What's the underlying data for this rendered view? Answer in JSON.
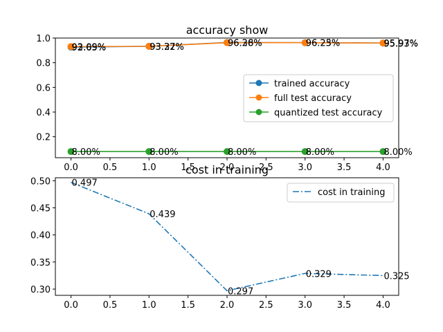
{
  "chart_data": [
    {
      "type": "line",
      "title": "accuracy show",
      "xlabel": "",
      "ylabel": "",
      "x": [
        0,
        1,
        2,
        3,
        4
      ],
      "xlim": [
        -0.2,
        4.2
      ],
      "ylim": [
        0.03,
        1.0
      ],
      "xticks": [
        0.0,
        0.5,
        1.0,
        1.5,
        2.0,
        2.5,
        3.0,
        3.5,
        4.0
      ],
      "xtick_labels": [
        "0.0",
        "0.5",
        "1.0",
        "1.5",
        "2.0",
        "2.5",
        "3.0",
        "3.5",
        "4.0"
      ],
      "yticks": [
        0.2,
        0.4,
        0.6,
        0.8,
        1.0
      ],
      "ytick_labels": [
        "0.2",
        "0.4",
        "0.6",
        "0.8",
        "1.0"
      ],
      "grid": false,
      "legend": "center-right",
      "series": [
        {
          "name": "trained accuracy",
          "color": "#1f77b4",
          "marker": "circle",
          "linestyle": "solid",
          "values": [
            0.9265,
            0.9332,
            0.9638,
            0.9625,
            0.9597
          ],
          "labels": [
            "92.65%",
            "93.32%",
            "96.38%",
            "96.25%",
            "95.97%"
          ]
        },
        {
          "name": "full test accuracy",
          "color": "#ff7f0e",
          "marker": "circle",
          "linestyle": "solid",
          "values": [
            0.9309,
            0.9327,
            0.9626,
            0.9623,
            0.9593
          ],
          "labels": [
            "93.09%",
            "93.27%",
            "96.26%",
            "96.23%",
            "95.93%"
          ]
        },
        {
          "name": "quantized test accuracy",
          "color": "#2ca02c",
          "marker": "circle",
          "linestyle": "solid",
          "values": [
            0.08,
            0.08,
            0.08,
            0.08,
            0.08
          ],
          "labels": [
            "8.00%",
            "8.00%",
            "8.00%",
            "8.00%",
            "8.00%"
          ]
        }
      ]
    },
    {
      "type": "line",
      "title": "cost in training",
      "xlabel": "",
      "ylabel": "",
      "x": [
        0,
        1,
        2,
        3,
        4
      ],
      "xlim": [
        -0.2,
        4.2
      ],
      "ylim": [
        0.2885,
        0.5055
      ],
      "xticks": [
        0.0,
        0.5,
        1.0,
        1.5,
        2.0,
        2.5,
        3.0,
        3.5,
        4.0
      ],
      "xtick_labels": [
        "0.0",
        "0.5",
        "1.0",
        "1.5",
        "2.0",
        "2.5",
        "3.0",
        "3.5",
        "4.0"
      ],
      "yticks": [
        0.3,
        0.35,
        0.4,
        0.45,
        0.5
      ],
      "ytick_labels": [
        "0.30",
        "0.35",
        "0.40",
        "0.45",
        "0.50"
      ],
      "grid": false,
      "legend": "top-right",
      "series": [
        {
          "name": "cost in training",
          "color": "#1f77b4",
          "marker": "none",
          "linestyle": "dashdot",
          "values": [
            0.497,
            0.439,
            0.297,
            0.329,
            0.325
          ],
          "labels": [
            "0.497",
            "0.439",
            "0.297",
            "0.329",
            "0.325"
          ]
        }
      ]
    }
  ]
}
